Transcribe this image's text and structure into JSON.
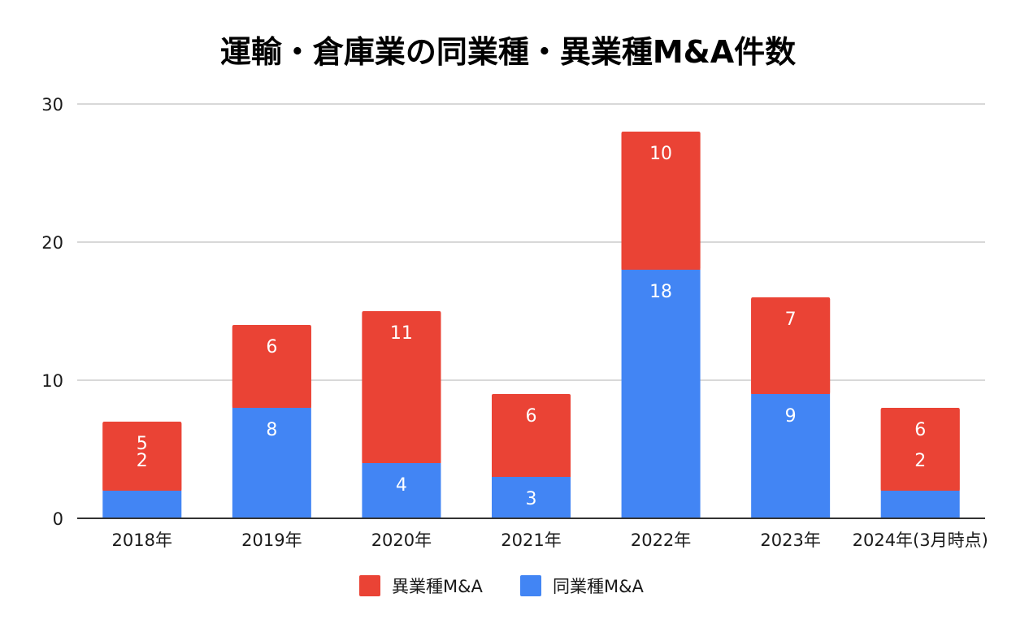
{
  "chart_data": {
    "type": "bar",
    "stacked": true,
    "title": "運輸・倉庫業の同業種・異業種M&A件数",
    "xlabel": "",
    "ylabel": "",
    "ylim": [
      0,
      30
    ],
    "yticks": [
      0,
      10,
      20,
      30
    ],
    "grid": true,
    "legend_position": "bottom",
    "categories": [
      "2018年",
      "2019年",
      "2020年",
      "2021年",
      "2022年",
      "2023年",
      "2024年(3月時点)"
    ],
    "series": [
      {
        "name": "同業種M&A",
        "color": "#4285F4",
        "values": [
          2,
          8,
          4,
          3,
          18,
          9,
          2
        ]
      },
      {
        "name": "異業種M&A",
        "color": "#EA4335",
        "values": [
          5,
          6,
          11,
          6,
          10,
          7,
          6
        ]
      }
    ],
    "legend_order": [
      "異業種M&A",
      "同業種M&A"
    ]
  }
}
